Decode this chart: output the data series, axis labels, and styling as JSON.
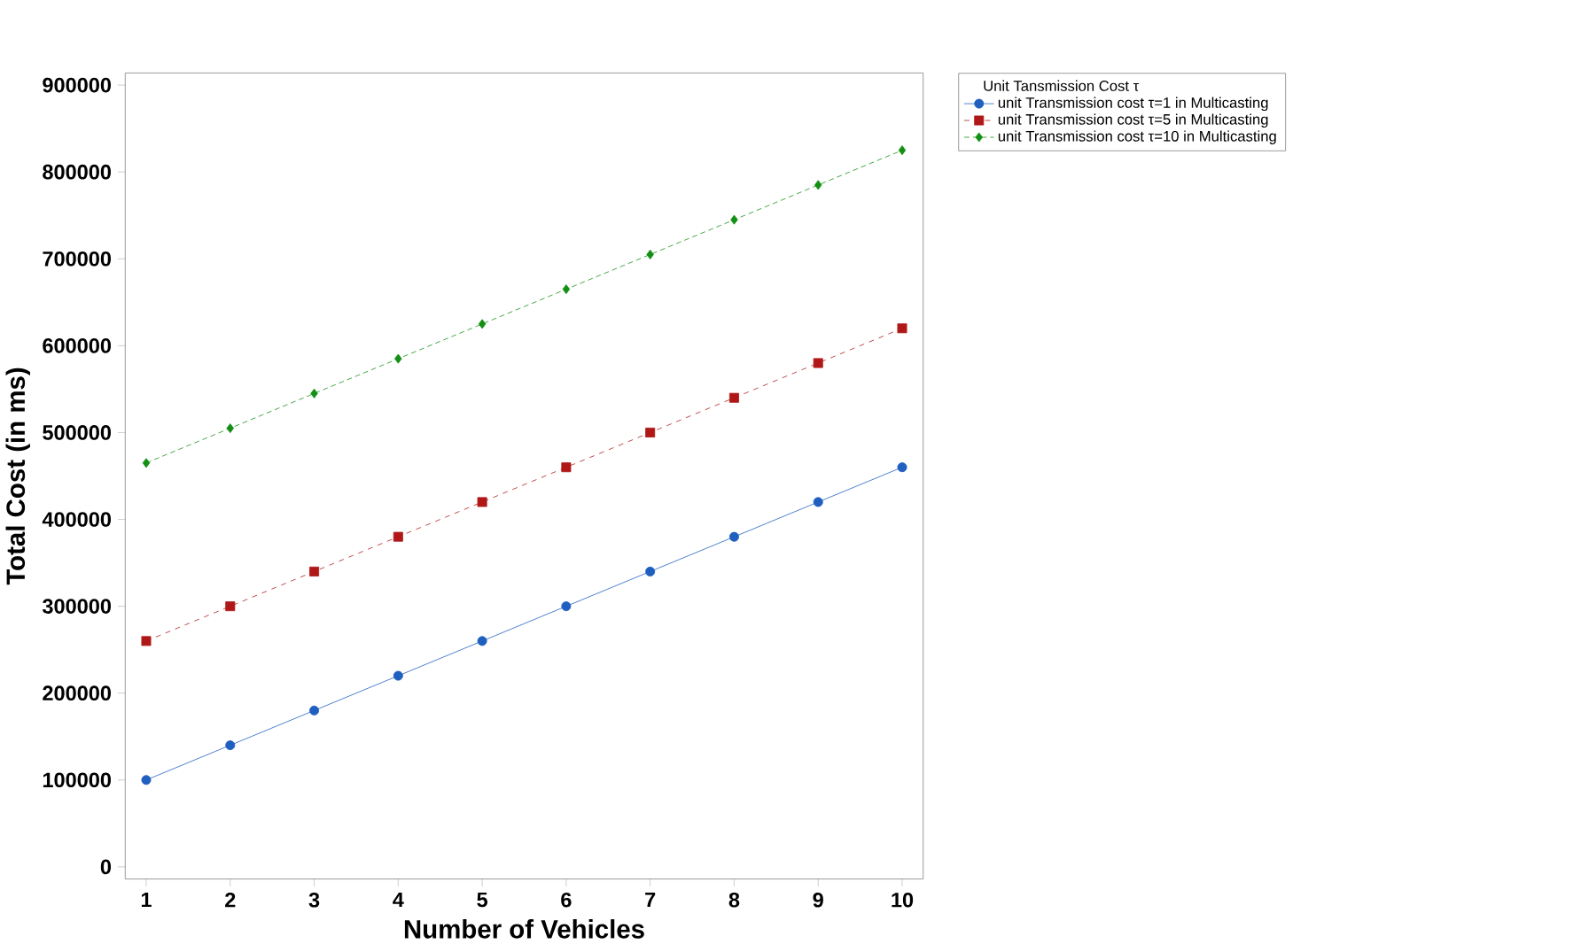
{
  "chart_data": {
    "type": "line",
    "xlabel": "Number of Vehicles",
    "ylabel": "Total Cost (in ms)",
    "legend_title": "Unit Tansmission Cost τ",
    "x": [
      1,
      2,
      3,
      4,
      5,
      6,
      7,
      8,
      9,
      10
    ],
    "series": [
      {
        "name": "unit Transmission cost τ=1 in Multicasting",
        "color": "#1f5fbf",
        "marker": "circle",
        "line_style": "solid",
        "values": [
          100000,
          140000,
          180000,
          220000,
          260000,
          300000,
          340000,
          380000,
          420000,
          460000
        ]
      },
      {
        "name": "unit Transmission cost τ=5 in Multicasting",
        "color": "#b01818",
        "marker": "square",
        "line_style": "dashed",
        "values": [
          260000,
          300000,
          340000,
          380000,
          420000,
          460000,
          500000,
          540000,
          580000,
          620000
        ]
      },
      {
        "name": "unit Transmission cost τ=10 in Multicasting",
        "color": "#139013",
        "marker": "diamond",
        "line_style": "dashed",
        "values": [
          465000,
          505000,
          545000,
          585000,
          625000,
          665000,
          705000,
          745000,
          785000,
          825000
        ]
      }
    ],
    "xlim": [
      0.75,
      10.25
    ],
    "ylim": [
      -14000,
      914000
    ],
    "xticks": [
      1,
      2,
      3,
      4,
      5,
      6,
      7,
      8,
      9,
      10
    ],
    "yticks": [
      0,
      100000,
      200000,
      300000,
      400000,
      500000,
      600000,
      700000,
      800000,
      900000
    ],
    "grid": false,
    "legend": "top right"
  }
}
